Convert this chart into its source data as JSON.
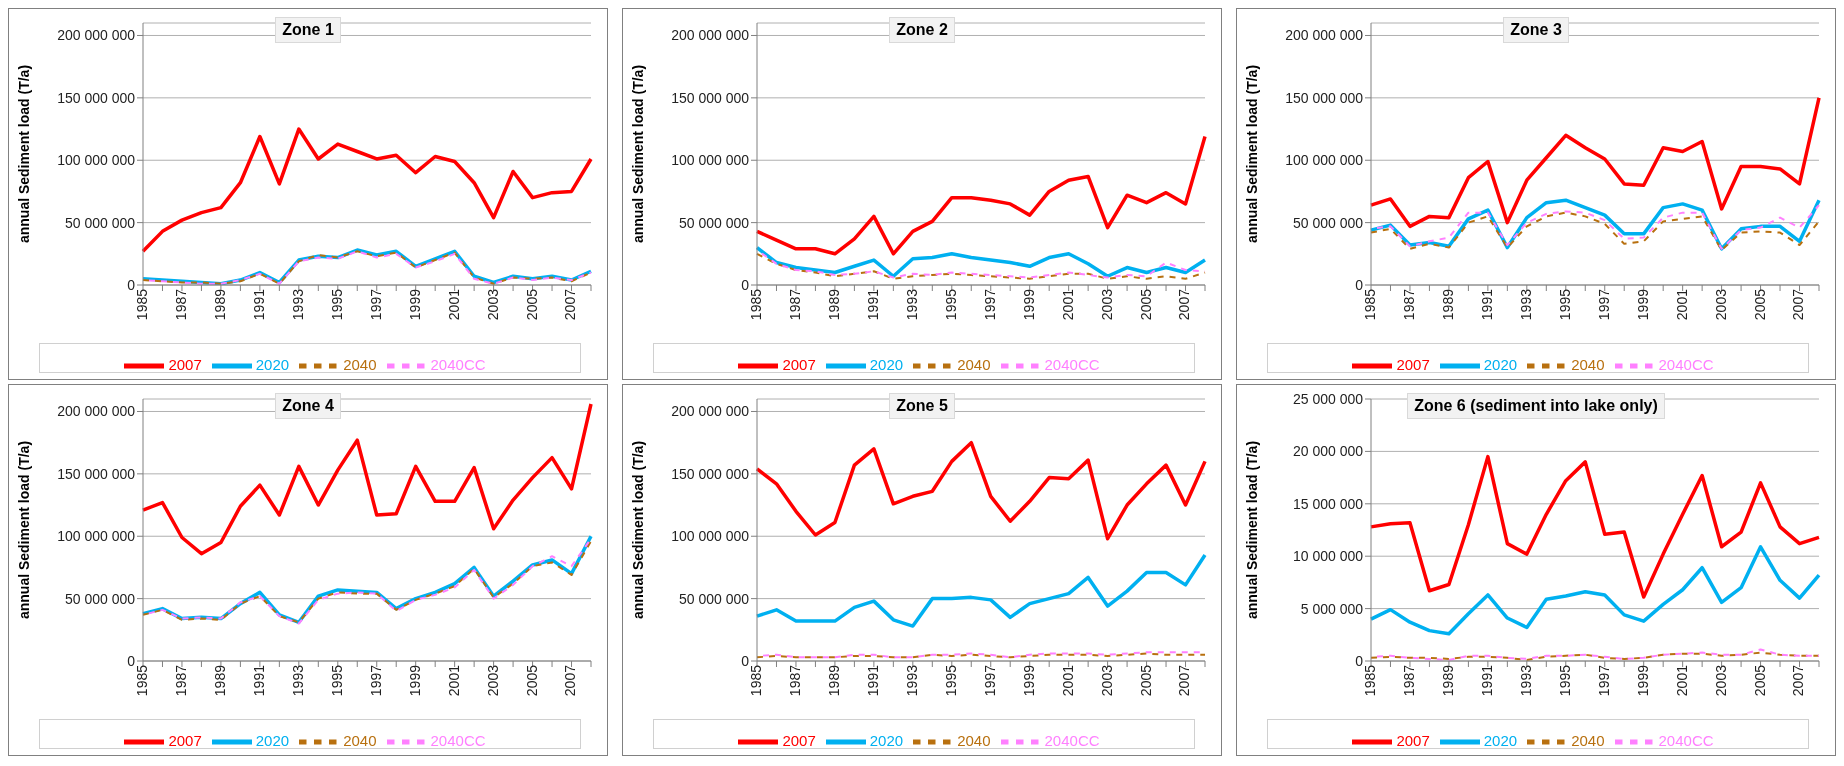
{
  "chart_data": [
    {
      "type": "line",
      "title": "Zone 1",
      "ylabel": "annual Sediment load (T/a)",
      "categories": [
        "1985",
        null,
        "1987",
        null,
        "1989",
        null,
        "1991",
        null,
        "1993",
        null,
        "1995",
        null,
        "1997",
        null,
        "1999",
        null,
        "2001",
        null,
        "2003",
        null,
        "2005",
        null,
        "2007",
        null
      ],
      "series": [
        {
          "name": "2007",
          "color": "#ff0000",
          "line_style": "solid",
          "values": [
            27000000.0,
            43000000.0,
            52000000.0,
            58000000.0,
            62000000.0,
            82000000.0,
            119000000.0,
            81000000.0,
            125000000.0,
            101000000.0,
            113000000.0,
            107000000.0,
            101000000.0,
            104000000.0,
            90000000.0,
            103000000.0,
            99000000.0,
            82000000.0,
            54000000.0,
            91000000.0,
            70000000.0,
            74000000.0,
            75000000.0,
            101000000.0
          ]
        },
        {
          "name": "2020",
          "color": "#00b0f0",
          "line_style": "solid",
          "values": [
            5000000.0,
            4000000.0,
            3000000.0,
            2000000.0,
            1000000.0,
            4000000.0,
            10000000.0,
            2000000.0,
            20000000.0,
            23000000.0,
            22000000.0,
            28000000.0,
            24000000.0,
            27000000.0,
            15000000.0,
            21000000.0,
            27000000.0,
            7000000.0,
            2000000.0,
            7000000.0,
            5000000.0,
            7000000.0,
            4000000.0,
            11000000.0
          ]
        },
        {
          "name": "2040",
          "color": "#b8700f",
          "line_style": "dashed",
          "values": [
            4000000.0,
            3000000.0,
            2000000.0,
            2000000.0,
            1000000.0,
            3000000.0,
            9000000.0,
            1000000.0,
            19000000.0,
            24000000.0,
            22000000.0,
            27000000.0,
            23000000.0,
            26000000.0,
            14000000.0,
            20000000.0,
            26000000.0,
            6000000.0,
            1000000.0,
            6000000.0,
            5000000.0,
            6000000.0,
            3000000.0,
            10000000.0
          ]
        },
        {
          "name": "2040CC",
          "color": "#ff80ff",
          "line_style": "dashed",
          "values": [
            4000000.0,
            3000000.0,
            2000000.0,
            1000000.0,
            1000000.0,
            4000000.0,
            9000000.0,
            1000000.0,
            19000000.0,
            22000000.0,
            21000000.0,
            27000000.0,
            22000000.0,
            25000000.0,
            14000000.0,
            19000000.0,
            25000000.0,
            5000000.0,
            1000000.0,
            6000000.0,
            4000000.0,
            6000000.0,
            4000000.0,
            10000000.0
          ]
        }
      ],
      "ylim": [
        0,
        210000000.0
      ],
      "yticks": [
        {
          "value": 0,
          "label": "0"
        },
        {
          "value": 50000000.0,
          "label": "50 000 000"
        },
        {
          "value": 100000000.0,
          "label": "100 000 000"
        },
        {
          "value": 150000000.0,
          "label": "150 000 000"
        },
        {
          "value": 200000000.0,
          "label": "200 000 000"
        }
      ],
      "grid": "y",
      "legend": "bottom"
    },
    {
      "type": "line",
      "title": "Zone 2",
      "ylabel": "annual Sediment load (T/a)",
      "categories": [
        "1985",
        null,
        "1987",
        null,
        "1989",
        null,
        "1991",
        null,
        "1993",
        null,
        "1995",
        null,
        "1997",
        null,
        "1999",
        null,
        "2001",
        null,
        "2003",
        null,
        "2005",
        null,
        "2007",
        null
      ],
      "series": [
        {
          "name": "2007",
          "color": "#ff0000",
          "line_style": "solid",
          "values": [
            43000000.0,
            36000000.0,
            29000000.0,
            29000000.0,
            25000000.0,
            37000000.0,
            55000000.0,
            25000000.0,
            43000000.0,
            51000000.0,
            70000000.0,
            70000000.0,
            68000000.0,
            65000000.0,
            56000000.0,
            75000000.0,
            84000000.0,
            87000000.0,
            46000000.0,
            72000000.0,
            66000000.0,
            74000000.0,
            65000000.0,
            119000000.0
          ]
        },
        {
          "name": "2020",
          "color": "#00b0f0",
          "line_style": "solid",
          "values": [
            30000000.0,
            18000000.0,
            14000000.0,
            12000000.0,
            10000000.0,
            15000000.0,
            20000000.0,
            7000000.0,
            21000000.0,
            22000000.0,
            25000000.0,
            22000000.0,
            20000000.0,
            18000000.0,
            15000000.0,
            22000000.0,
            25000000.0,
            17000000.0,
            7000000.0,
            14000000.0,
            10000000.0,
            14000000.0,
            10000000.0,
            20000000.0
          ]
        },
        {
          "name": "2040",
          "color": "#b8700f",
          "line_style": "dashed",
          "values": [
            25000000.0,
            17000000.0,
            12000000.0,
            10000000.0,
            7000000.0,
            9000000.0,
            11000000.0,
            5000000.0,
            7000000.0,
            8000000.0,
            9000000.0,
            8000000.0,
            7000000.0,
            6000000.0,
            5000000.0,
            7000000.0,
            9000000.0,
            9000000.0,
            5000000.0,
            7000000.0,
            5000000.0,
            7000000.0,
            5000000.0,
            10000000.0
          ]
        },
        {
          "name": "2040CC",
          "color": "#ff80ff",
          "line_style": "dashed",
          "values": [
            28000000.0,
            17000000.0,
            12000000.0,
            11000000.0,
            8000000.0,
            9000000.0,
            11000000.0,
            6000000.0,
            9000000.0,
            8000000.0,
            10000000.0,
            9000000.0,
            8000000.0,
            7000000.0,
            6000000.0,
            8000000.0,
            10000000.0,
            8000000.0,
            6000000.0,
            8000000.0,
            7000000.0,
            18000000.0,
            12000000.0,
            11000000.0
          ]
        }
      ],
      "ylim": [
        0,
        210000000.0
      ],
      "yticks": [
        {
          "value": 0,
          "label": "0"
        },
        {
          "value": 50000000.0,
          "label": "50 000 000"
        },
        {
          "value": 100000000.0,
          "label": "100 000 000"
        },
        {
          "value": 150000000.0,
          "label": "150 000 000"
        },
        {
          "value": 200000000.0,
          "label": "200 000 000"
        }
      ],
      "grid": "y",
      "legend": "bottom"
    },
    {
      "type": "line",
      "title": "Zone 3",
      "ylabel": "annual Sediment load (T/a)",
      "categories": [
        "1985",
        null,
        "1987",
        null,
        "1989",
        null,
        "1991",
        null,
        "1993",
        null,
        "1995",
        null,
        "1997",
        null,
        "1999",
        null,
        "2001",
        null,
        "2003",
        null,
        "2005",
        null,
        "2007",
        null
      ],
      "series": [
        {
          "name": "2007",
          "color": "#ff0000",
          "line_style": "solid",
          "values": [
            64000000.0,
            69000000.0,
            47000000.0,
            55000000.0,
            54000000.0,
            86000000.0,
            99000000.0,
            50000000.0,
            84000000.0,
            102000000.0,
            120000000.0,
            110000000.0,
            101000000.0,
            81000000.0,
            80000000.0,
            110000000.0,
            107000000.0,
            115000000.0,
            61000000.0,
            95000000.0,
            95000000.0,
            93000000.0,
            81000000.0,
            150000000.0
          ]
        },
        {
          "name": "2020",
          "color": "#00b0f0",
          "line_style": "solid",
          "values": [
            44000000.0,
            48000000.0,
            32000000.0,
            34000000.0,
            31000000.0,
            53000000.0,
            60000000.0,
            30000000.0,
            54000000.0,
            66000000.0,
            68000000.0,
            62000000.0,
            56000000.0,
            41000000.0,
            41000000.0,
            62000000.0,
            65000000.0,
            60000000.0,
            29000000.0,
            45000000.0,
            47000000.0,
            47000000.0,
            35000000.0,
            68000000.0
          ]
        },
        {
          "name": "2040",
          "color": "#b8700f",
          "line_style": "dashed",
          "values": [
            42000000.0,
            45000000.0,
            29000000.0,
            33000000.0,
            30000000.0,
            50000000.0,
            55000000.0,
            30000000.0,
            47000000.0,
            55000000.0,
            58000000.0,
            55000000.0,
            49000000.0,
            33000000.0,
            35000000.0,
            51000000.0,
            53000000.0,
            55000000.0,
            28000000.0,
            42000000.0,
            43000000.0,
            42000000.0,
            32000000.0,
            51000000.0
          ]
        },
        {
          "name": "2040CC",
          "color": "#ff80ff",
          "line_style": "dashed",
          "values": [
            45000000.0,
            47000000.0,
            31000000.0,
            35000000.0,
            38000000.0,
            58000000.0,
            58000000.0,
            32000000.0,
            50000000.0,
            57000000.0,
            59000000.0,
            58000000.0,
            52000000.0,
            37000000.0,
            38000000.0,
            54000000.0,
            58000000.0,
            58000000.0,
            29000000.0,
            44000000.0,
            46000000.0,
            54000000.0,
            46000000.0,
            64000000.0
          ]
        }
      ],
      "ylim": [
        0,
        210000000.0
      ],
      "yticks": [
        {
          "value": 0,
          "label": "0"
        },
        {
          "value": 50000000.0,
          "label": "50 000 000"
        },
        {
          "value": 100000000.0,
          "label": "100 000 000"
        },
        {
          "value": 150000000.0,
          "label": "150 000 000"
        },
        {
          "value": 200000000.0,
          "label": "200 000 000"
        }
      ],
      "grid": "y",
      "legend": "bottom"
    },
    {
      "type": "line",
      "title": "Zone 4",
      "ylabel": "annual Sediment load (T/a)",
      "categories": [
        "1985",
        null,
        "1987",
        null,
        "1989",
        null,
        "1991",
        null,
        "1993",
        null,
        "1995",
        null,
        "1997",
        null,
        "1999",
        null,
        "2001",
        null,
        "2003",
        null,
        "2005",
        null,
        "2007",
        null
      ],
      "series": [
        {
          "name": "2007",
          "color": "#ff0000",
          "line_style": "solid",
          "values": [
            121000000.0,
            127000000.0,
            99000000.0,
            86000000.0,
            95000000.0,
            124000000.0,
            141000000.0,
            117000000.0,
            156000000.0,
            125000000.0,
            153000000.0,
            177000000.0,
            117000000.0,
            118000000.0,
            156000000.0,
            128000000.0,
            128000000.0,
            155000000.0,
            106000000.0,
            129000000.0,
            147000000.0,
            163000000.0,
            138000000.0,
            206000000.0
          ]
        },
        {
          "name": "2020",
          "color": "#00b0f0",
          "line_style": "solid",
          "values": [
            38000000.0,
            42000000.0,
            34000000.0,
            35000000.0,
            34000000.0,
            46000000.0,
            55000000.0,
            37000000.0,
            31000000.0,
            52000000.0,
            57000000.0,
            56000000.0,
            55000000.0,
            42000000.0,
            50000000.0,
            55000000.0,
            62000000.0,
            75000000.0,
            52000000.0,
            64000000.0,
            77000000.0,
            81000000.0,
            70000000.0,
            100000000.0
          ]
        },
        {
          "name": "2040",
          "color": "#b8700f",
          "line_style": "dashed",
          "values": [
            37000000.0,
            41000000.0,
            33000000.0,
            34000000.0,
            33000000.0,
            46000000.0,
            52000000.0,
            36000000.0,
            31000000.0,
            50000000.0,
            55000000.0,
            54000000.0,
            54000000.0,
            41000000.0,
            49000000.0,
            54000000.0,
            60000000.0,
            74000000.0,
            51000000.0,
            62000000.0,
            76000000.0,
            79000000.0,
            69000000.0,
            96000000.0
          ]
        },
        {
          "name": "2040CC",
          "color": "#ff80ff",
          "line_style": "dashed",
          "values": [
            37000000.0,
            41000000.0,
            34000000.0,
            35000000.0,
            34000000.0,
            47000000.0,
            52000000.0,
            36000000.0,
            30000000.0,
            49000000.0,
            54000000.0,
            55000000.0,
            54000000.0,
            40000000.0,
            49000000.0,
            53000000.0,
            59000000.0,
            73000000.0,
            50000000.0,
            61000000.0,
            76000000.0,
            84000000.0,
            76000000.0,
            98000000.0
          ]
        }
      ],
      "ylim": [
        0,
        210000000.0
      ],
      "yticks": [
        {
          "value": 0,
          "label": "0"
        },
        {
          "value": 50000000.0,
          "label": "50 000 000"
        },
        {
          "value": 100000000.0,
          "label": "100 000 000"
        },
        {
          "value": 150000000.0,
          "label": "150 000 000"
        },
        {
          "value": 200000000.0,
          "label": "200 000 000"
        }
      ],
      "grid": "y",
      "legend": "bottom"
    },
    {
      "type": "line",
      "title": "Zone 5",
      "ylabel": "annual Sediment load (T/a)",
      "categories": [
        "1985",
        null,
        "1987",
        null,
        "1989",
        null,
        "1991",
        null,
        "1993",
        null,
        "1995",
        null,
        "1997",
        null,
        "1999",
        null,
        "2001",
        null,
        "2003",
        null,
        "2005",
        null,
        "2007",
        null
      ],
      "series": [
        {
          "name": "2007",
          "color": "#ff0000",
          "line_style": "solid",
          "values": [
            154000000.0,
            142000000.0,
            120000000.0,
            101000000.0,
            111000000.0,
            157000000.0,
            170000000.0,
            126000000.0,
            132000000.0,
            136000000.0,
            160000000.0,
            175000000.0,
            132000000.0,
            112000000.0,
            128000000.0,
            147000000.0,
            146000000.0,
            161000000.0,
            98000000.0,
            125000000.0,
            142000000.0,
            157000000.0,
            125000000.0,
            160000000.0
          ]
        },
        {
          "name": "2020",
          "color": "#00b0f0",
          "line_style": "solid",
          "values": [
            36000000.0,
            41000000.0,
            32000000.0,
            32000000.0,
            32000000.0,
            43000000.0,
            48000000.0,
            33000000.0,
            28000000.0,
            50000000.0,
            50000000.0,
            51000000.0,
            49000000.0,
            35000000.0,
            46000000.0,
            50000000.0,
            54000000.0,
            67000000.0,
            44000000.0,
            56000000.0,
            71000000.0,
            71000000.0,
            61000000.0,
            85000000.0
          ]
        },
        {
          "name": "2040",
          "color": "#b8700f",
          "line_style": "dashed",
          "values": [
            3000000.0,
            4000000.0,
            3000000.0,
            3000000.0,
            3000000.0,
            4000000.0,
            4000000.0,
            3000000.0,
            3000000.0,
            5000000.0,
            4000000.0,
            5000000.0,
            4000000.0,
            3000000.0,
            4000000.0,
            5000000.0,
            5000000.0,
            5000000.0,
            4000000.0,
            5000000.0,
            6000000.0,
            5000000.0,
            5000000.0,
            5000000.0
          ]
        },
        {
          "name": "2040CC",
          "color": "#ff80ff",
          "line_style": "dashed",
          "values": [
            4000000.0,
            5000000.0,
            3000000.0,
            3000000.0,
            3000000.0,
            5000000.0,
            5000000.0,
            3000000.0,
            3000000.0,
            5000000.0,
            5000000.0,
            6000000.0,
            5000000.0,
            3000000.0,
            5000000.0,
            6000000.0,
            6000000.0,
            6000000.0,
            5000000.0,
            6000000.0,
            7000000.0,
            7000000.0,
            7000000.0,
            7000000.0
          ]
        }
      ],
      "ylim": [
        0,
        210000000.0
      ],
      "yticks": [
        {
          "value": 0,
          "label": "0"
        },
        {
          "value": 50000000.0,
          "label": "50 000 000"
        },
        {
          "value": 100000000.0,
          "label": "100 000 000"
        },
        {
          "value": 150000000.0,
          "label": "150 000 000"
        },
        {
          "value": 200000000.0,
          "label": "200 000 000"
        }
      ],
      "grid": "y",
      "legend": "bottom"
    },
    {
      "type": "line",
      "title": "Zone 6 (sediment into lake only)",
      "ylabel": "annual Sediment load (T/a)",
      "categories": [
        "1985",
        null,
        "1987",
        null,
        "1989",
        null,
        "1991",
        null,
        "1993",
        null,
        "1995",
        null,
        "1997",
        null,
        "1999",
        null,
        "2001",
        null,
        "2003",
        null,
        "2005",
        null,
        "2007",
        null
      ],
      "series": [
        {
          "name": "2007",
          "color": "#ff0000",
          "line_style": "solid",
          "values": [
            12800000.0,
            13100000.0,
            13200000.0,
            6700000.0,
            7300000.0,
            13000000.0,
            19500000.0,
            11200000.0,
            10200000.0,
            14000000.0,
            17200000.0,
            19000000.0,
            12100000.0,
            12300000.0,
            6100000.0,
            10200000.0,
            14000000.0,
            17700000.0,
            10900000.0,
            12300000.0,
            17000000.0,
            12800000.0,
            11200000.0,
            11800000.0
          ]
        },
        {
          "name": "2020",
          "color": "#00b0f0",
          "line_style": "solid",
          "values": [
            4000000.0,
            4900000.0,
            3700000.0,
            2900000.0,
            2600000.0,
            4500000.0,
            6300000.0,
            4100000.0,
            3200000.0,
            5900000.0,
            6200000.0,
            6600000.0,
            6300000.0,
            4400000.0,
            3800000.0,
            5400000.0,
            6800000.0,
            8900000.0,
            5600000.0,
            7000000.0,
            10900000.0,
            7700000.0,
            6000000.0,
            8200000.0
          ]
        },
        {
          "name": "2040",
          "color": "#b8700f",
          "line_style": "dashed",
          "values": [
            300000.0,
            400000.0,
            300000.0,
            300000.0,
            200000.0,
            400000.0,
            400000.0,
            300000.0,
            100000.0,
            400000.0,
            500000.0,
            600000.0,
            300000.0,
            200000.0,
            300000.0,
            600000.0,
            700000.0,
            700000.0,
            500000.0,
            600000.0,
            800000.0,
            600000.0,
            500000.0,
            500000.0
          ]
        },
        {
          "name": "2040CC",
          "color": "#ff80ff",
          "line_style": "dashed",
          "values": [
            400000.0,
            500000.0,
            300000.0,
            200000.0,
            100000.0,
            500000.0,
            500000.0,
            300000.0,
            200000.0,
            500000.0,
            500000.0,
            600000.0,
            400000.0,
            200000.0,
            300000.0,
            600000.0,
            700000.0,
            800000.0,
            600000.0,
            600000.0,
            1100000.0,
            600000.0,
            500000.0,
            500000.0
          ]
        }
      ],
      "ylim": [
        0,
        25000000.0
      ],
      "yticks": [
        {
          "value": 0,
          "label": "0"
        },
        {
          "value": 5000000.0,
          "label": "5 000 000"
        },
        {
          "value": 10000000.0,
          "label": "10 000 000"
        },
        {
          "value": 15000000.0,
          "label": "15 000 000"
        },
        {
          "value": 20000000.0,
          "label": "20 000 000"
        },
        {
          "value": 25000000.0,
          "label": "25 000 000"
        }
      ],
      "grid": "y",
      "legend": "bottom"
    }
  ]
}
